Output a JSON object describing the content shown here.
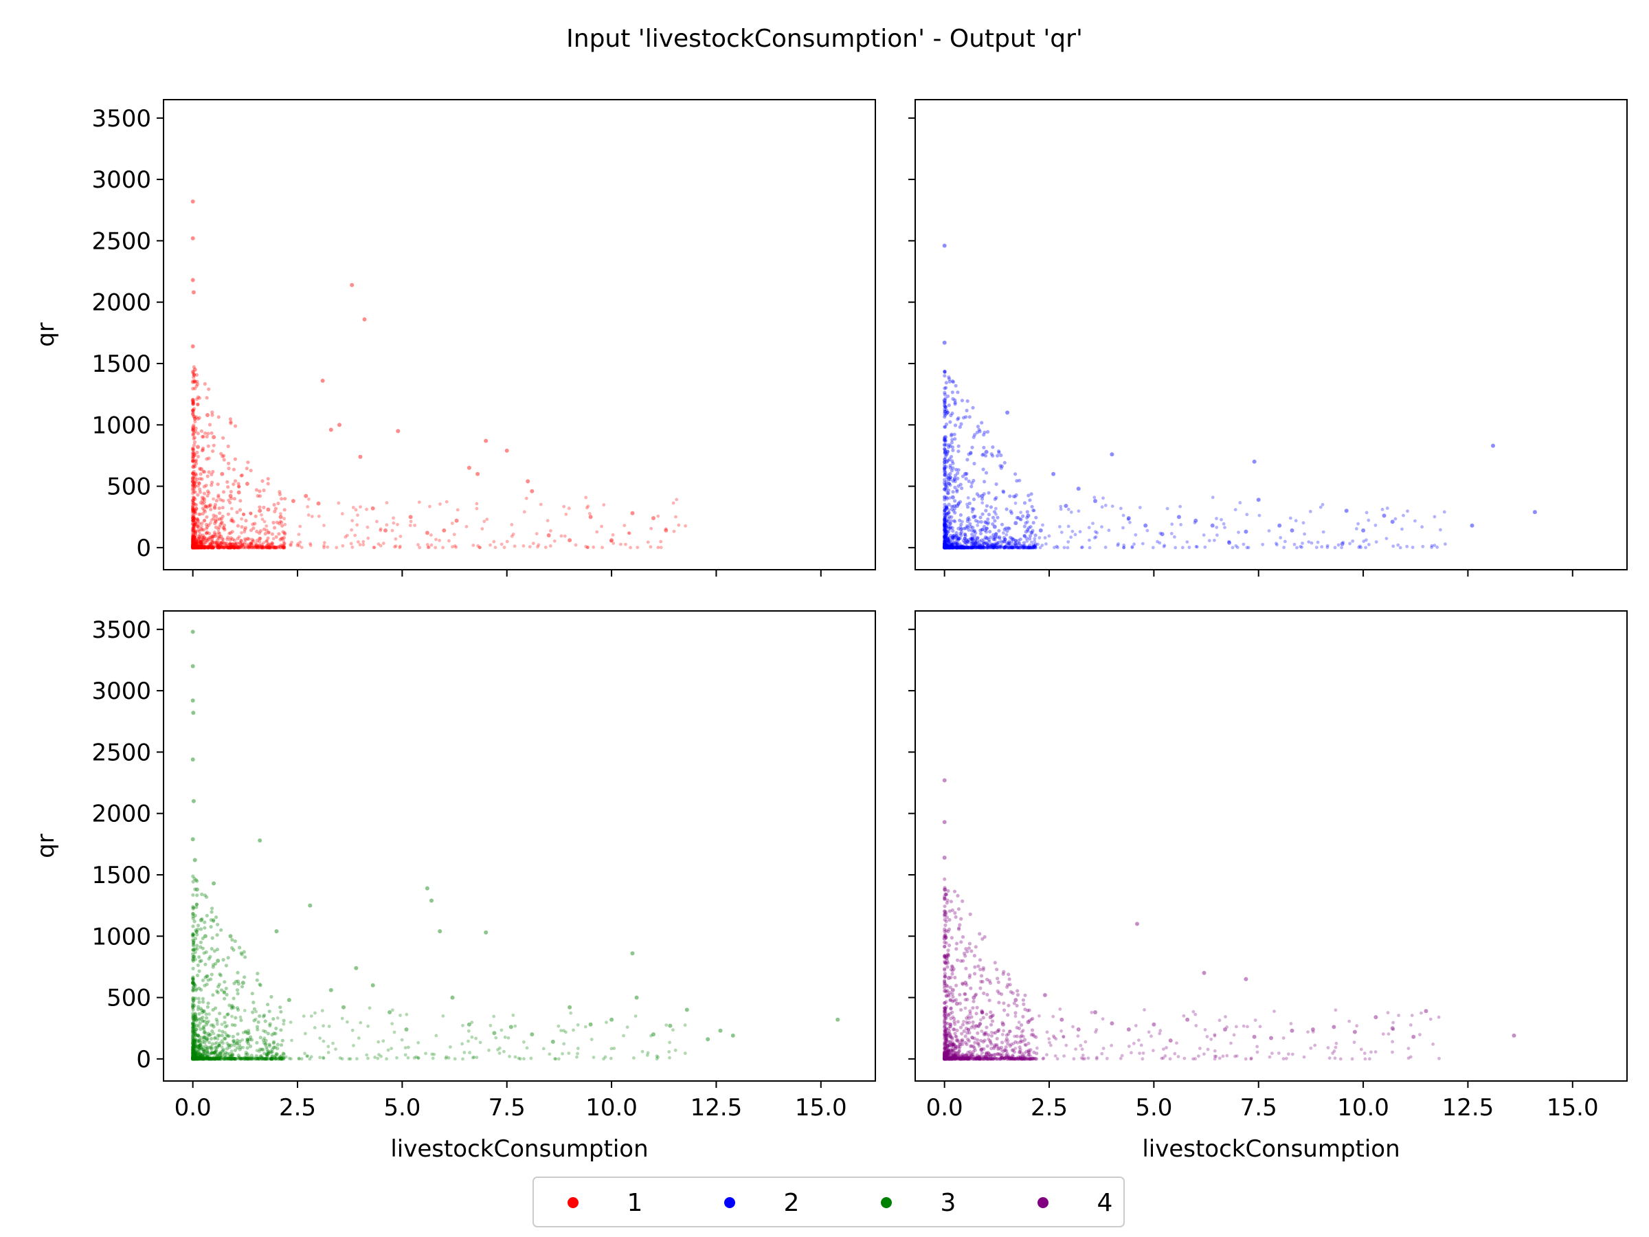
{
  "figure": {
    "title": "Input 'livestockConsumption' - Output 'qr'",
    "xlabel": "livestockConsumption",
    "ylabel": "qr"
  },
  "legend": {
    "position": "bottom-center",
    "entries": [
      {
        "label": "1",
        "color": "#ff0000"
      },
      {
        "label": "2",
        "color": "#0000ff"
      },
      {
        "label": "3",
        "color": "#008000"
      },
      {
        "label": "4",
        "color": "#800080"
      }
    ]
  },
  "chart_data": [
    {
      "type": "scatter",
      "series": [
        {
          "name": "1",
          "color": "#ff0000",
          "x": [
            0.0,
            0.0,
            0.0,
            0.02,
            0.0,
            0.05,
            0.0,
            0.01,
            0.03,
            0.0,
            0.12,
            0.2,
            0.35,
            0.5,
            0.7,
            0.9,
            1.1,
            1.3,
            1.6,
            1.8,
            2.1,
            2.4,
            2.7,
            3.0,
            3.1,
            3.3,
            3.5,
            3.8,
            4.0,
            4.1,
            4.3,
            4.6,
            4.9,
            5.2,
            5.6,
            6.0,
            6.3,
            6.6,
            6.8,
            7.0,
            7.5,
            8.0,
            8.1,
            8.5,
            9.0,
            9.5,
            10.0,
            10.5,
            11.0,
            11.3
          ],
          "y": [
            2820,
            2520,
            2180,
            2080,
            1640,
            1450,
            1200,
            980,
            760,
            540,
            820,
            640,
            1080,
            900,
            600,
            420,
            450,
            520,
            300,
            310,
            250,
            380,
            420,
            360,
            1360,
            960,
            1000,
            2140,
            740,
            1860,
            320,
            140,
            950,
            250,
            120,
            140,
            220,
            650,
            600,
            870,
            790,
            540,
            460,
            100,
            60,
            250,
            60,
            280,
            240,
            140
          ]
        },
        {
          "name": "",
          "color": "#ff0000",
          "x": [],
          "y": []
        }
      ],
      "xlim": [
        -0.7,
        16.3
      ],
      "ylim": [
        -180,
        3650
      ],
      "xticks": [
        "0.0",
        "2.5",
        "5.0",
        "7.5",
        "10.0",
        "12.5",
        "15.0"
      ],
      "yticks": [
        "0",
        "500",
        "1000",
        "1500",
        "2000",
        "2500",
        "3000",
        "3500"
      ],
      "grid": false
    },
    {
      "type": "scatter",
      "series": [
        {
          "name": "2",
          "color": "#0000ff",
          "x": [
            0.0,
            0.0,
            0.0,
            0.02,
            0.05,
            0.1,
            0.2,
            0.3,
            0.5,
            0.7,
            0.9,
            1.0,
            1.2,
            1.5,
            1.7,
            2.0,
            2.3,
            2.6,
            2.9,
            3.2,
            3.6,
            4.0,
            4.4,
            4.8,
            5.2,
            5.6,
            6.0,
            6.4,
            6.8,
            7.2,
            7.4,
            7.5,
            8.0,
            8.3,
            9.5,
            9.6,
            10.0,
            10.5,
            10.7,
            12.6,
            13.1,
            14.1
          ],
          "y": [
            2460,
            1670,
            1200,
            900,
            700,
            560,
            410,
            340,
            600,
            250,
            420,
            780,
            170,
            1100,
            200,
            260,
            140,
            600,
            340,
            480,
            380,
            760,
            240,
            180,
            110,
            250,
            220,
            180,
            40,
            130,
            700,
            390,
            180,
            140,
            30,
            300,
            140,
            260,
            210,
            180,
            830,
            290
          ]
        },
        {
          "name": "",
          "color": "#0000ff",
          "x": [],
          "y": []
        }
      ],
      "xlim": [
        -0.7,
        16.3
      ],
      "ylim": [
        -180,
        3650
      ],
      "xticks": [
        "0.0",
        "2.5",
        "5.0",
        "7.5",
        "10.0",
        "12.5",
        "15.0"
      ],
      "yticks": [
        "0",
        "500",
        "1000",
        "1500",
        "2000",
        "2500",
        "3000",
        "3500"
      ],
      "grid": false
    },
    {
      "type": "scatter",
      "series": [
        {
          "name": "3",
          "color": "#008000",
          "x": [
            0.0,
            0.0,
            0.0,
            0.01,
            0.0,
            0.02,
            0.0,
            0.05,
            0.1,
            0.2,
            0.3,
            0.5,
            0.6,
            0.9,
            1.2,
            1.6,
            2.0,
            2.3,
            2.8,
            3.3,
            3.6,
            3.9,
            4.3,
            4.7,
            5.1,
            5.6,
            5.7,
            5.9,
            6.2,
            6.6,
            7.0,
            7.2,
            7.6,
            8.1,
            8.6,
            9.0,
            9.5,
            10.0,
            10.5,
            10.6,
            11.0,
            11.4,
            11.8,
            12.3,
            12.6,
            12.9,
            15.4
          ],
          "y": [
            3480,
            3200,
            2920,
            2820,
            2440,
            2100,
            1790,
            1620,
            1380,
            1130,
            1000,
            1430,
            800,
            1000,
            620,
            1780,
            1040,
            480,
            1250,
            560,
            420,
            740,
            600,
            380,
            240,
            1390,
            1290,
            1040,
            500,
            280,
            1030,
            210,
            260,
            200,
            140,
            420,
            280,
            320,
            860,
            500,
            200,
            270,
            400,
            160,
            230,
            190,
            320
          ]
        },
        {
          "name": "",
          "color": "#008000",
          "x": [],
          "y": []
        }
      ],
      "xlim": [
        -0.7,
        16.3
      ],
      "ylim": [
        -180,
        3650
      ],
      "xticks": [
        "0.0",
        "2.5",
        "5.0",
        "7.5",
        "10.0",
        "12.5",
        "15.0"
      ],
      "yticks": [
        "0",
        "500",
        "1000",
        "1500",
        "2000",
        "2500",
        "3000",
        "3500"
      ],
      "grid": false
    },
    {
      "type": "scatter",
      "series": [
        {
          "name": "4",
          "color": "#800080",
          "x": [
            0.0,
            0.0,
            0.0,
            0.01,
            0.02,
            0.0,
            0.05,
            0.1,
            0.2,
            0.3,
            0.5,
            0.7,
            0.9,
            1.1,
            1.4,
            1.7,
            2.0,
            2.4,
            2.8,
            3.2,
            3.6,
            4.0,
            4.4,
            4.6,
            5.0,
            5.4,
            5.8,
            6.2,
            6.7,
            7.2,
            7.4,
            7.8,
            8.3,
            8.8,
            9.3,
            9.8,
            10.3,
            10.7,
            11.2,
            11.5,
            13.6
          ],
          "y": [
            2270,
            1930,
            1640,
            1380,
            1180,
            980,
            820,
            660,
            560,
            450,
            620,
            500,
            380,
            340,
            280,
            480,
            300,
            520,
            320,
            240,
            380,
            290,
            240,
            1100,
            280,
            150,
            320,
            700,
            240,
            650,
            180,
            170,
            230,
            240,
            260,
            220,
            340,
            250,
            180,
            390,
            190
          ]
        },
        {
          "name": "",
          "color": "#800080",
          "x": [],
          "y": []
        }
      ],
      "xlim": [
        -0.7,
        16.3
      ],
      "ylim": [
        -180,
        3650
      ],
      "xticks": [
        "0.0",
        "2.5",
        "5.0",
        "7.5",
        "10.0",
        "12.5",
        "15.0"
      ],
      "yticks": [
        "0",
        "500",
        "1000",
        "1500",
        "2000",
        "2500",
        "3000",
        "3500"
      ],
      "grid": false
    }
  ]
}
